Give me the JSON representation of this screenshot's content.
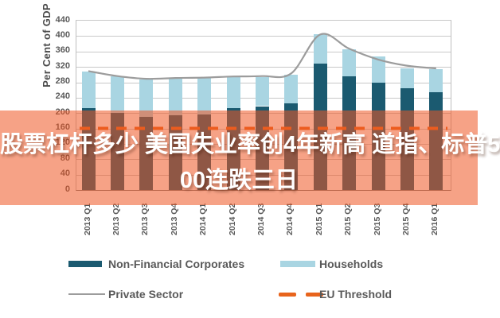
{
  "overlay": {
    "line1": "股票杠杆多少 美国失业率创4年新高 道指、标普5",
    "line2": "00连跌三日",
    "band_color": "rgba(239,85,35,0.55)",
    "text_color": "#FFFFFF"
  },
  "chart_data": {
    "type": "bar",
    "stacked": true,
    "title": "",
    "ylabel": "Per Cent of GDP",
    "xlabel": "",
    "ylim": [
      0,
      440
    ],
    "ytick_interval": 40,
    "ytick_labels": [
      "0",
      "40",
      "80",
      "120",
      "160",
      "200",
      "240",
      "280",
      "320",
      "360",
      "400",
      "440"
    ],
    "grid": true,
    "legend_position": "bottom",
    "categories": [
      "2013 Q1",
      "2013 Q2",
      "2013 Q3",
      "2013 Q4",
      "2014 Q1",
      "2014 Q2",
      "2014 Q3",
      "2014 Q4",
      "2015 Q1",
      "2015 Q2",
      "2015 Q3",
      "2015 Q4",
      "2016 Q1"
    ],
    "series": [
      {
        "name": "Non-Financial Corporates",
        "kind": "bar",
        "color": "#1B5A70",
        "values": [
          212,
          200,
          190,
          195,
          197,
          212,
          218,
          225,
          328,
          296,
          278,
          265,
          254
        ]
      },
      {
        "name": "Households",
        "kind": "bar",
        "color": "#A9D5E2",
        "values": [
          96,
          95,
          98,
          96,
          94,
          83,
          76,
          74,
          76,
          70,
          69,
          51,
          60
        ]
      },
      {
        "name": "Private Sector",
        "kind": "line",
        "color": "#9C9C9C",
        "values": [
          309,
          296,
          289,
          291,
          292,
          295,
          296,
          303,
          404,
          367,
          339,
          323,
          316
        ]
      },
      {
        "name": "EU Threshold",
        "kind": "dashed-threshold",
        "color": "#E8641C",
        "value": 160
      }
    ],
    "colors": {
      "gridline": "#C8C8C8",
      "axis": "#7F7F7F",
      "tick_text": "#595959"
    }
  }
}
